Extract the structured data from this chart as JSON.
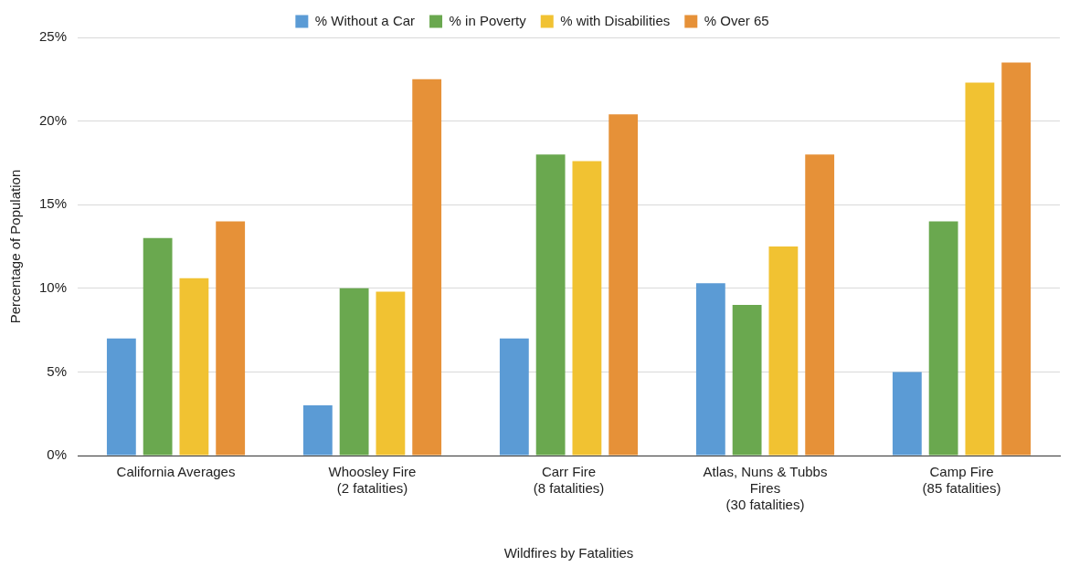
{
  "chart_data": {
    "type": "bar",
    "xlabel": "Wildfires by Fatalities",
    "ylabel": "Percentage of Population",
    "categories": [
      "California Averages",
      "Whoosley Fire\n(2 fatalities)",
      "Carr Fire\n(8 fatalities)",
      "Atlas, Nuns & Tubbs\nFires\n(30 fatalities)",
      "Camp Fire\n(85 fatalities)"
    ],
    "series": [
      {
        "name": "% Without a Car",
        "color": "#5b9bd5",
        "values": [
          7,
          3,
          7,
          10.3,
          5
        ]
      },
      {
        "name": "% in Poverty",
        "color": "#6aa84f",
        "values": [
          13,
          10,
          18,
          9,
          14
        ]
      },
      {
        "name": "% with Disabilities",
        "color": "#f1c232",
        "values": [
          10.6,
          9.8,
          17.6,
          12.5,
          22.3
        ]
      },
      {
        "name": "% Over 65",
        "color": "#e69138",
        "values": [
          14,
          22.5,
          20.4,
          18,
          23.5
        ]
      }
    ],
    "ylim": [
      0,
      25
    ],
    "yticks": [
      {
        "value": 0,
        "label": "0%"
      },
      {
        "value": 5,
        "label": "5%"
      },
      {
        "value": 10,
        "label": "10%"
      },
      {
        "value": 15,
        "label": "15%"
      },
      {
        "value": 20,
        "label": "20%"
      },
      {
        "value": 25,
        "label": "25%"
      }
    ],
    "grid": "y",
    "legend": "top"
  }
}
